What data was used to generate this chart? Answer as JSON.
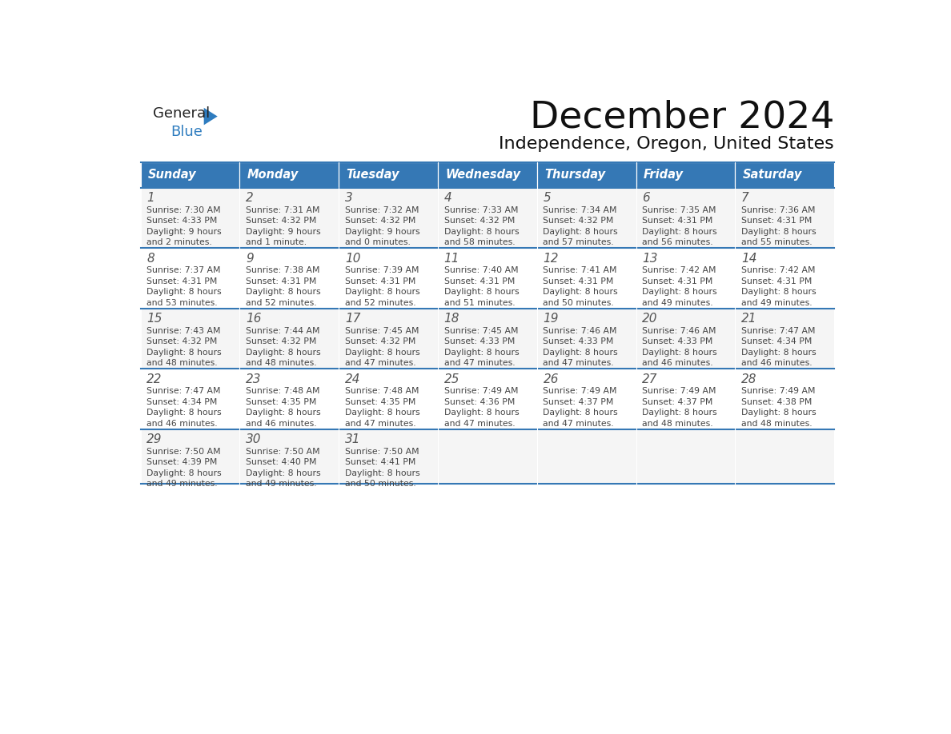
{
  "title": "December 2024",
  "subtitle": "Independence, Oregon, United States",
  "header_bg_color": "#3578b5",
  "header_text_color": "#ffffff",
  "row_bg_colors": [
    "#f5f5f5",
    "#ffffff",
    "#f5f5f5",
    "#ffffff",
    "#f5f5f5"
  ],
  "border_color": "#3578b5",
  "text_color": "#555555",
  "small_text_color": "#444444",
  "days_of_week": [
    "Sunday",
    "Monday",
    "Tuesday",
    "Wednesday",
    "Thursday",
    "Friday",
    "Saturday"
  ],
  "weeks": [
    [
      {
        "day": "1",
        "sunrise": "7:30 AM",
        "sunset": "4:33 PM",
        "daylight": "9 hours",
        "daylight2": "and 2 minutes."
      },
      {
        "day": "2",
        "sunrise": "7:31 AM",
        "sunset": "4:32 PM",
        "daylight": "9 hours",
        "daylight2": "and 1 minute."
      },
      {
        "day": "3",
        "sunrise": "7:32 AM",
        "sunset": "4:32 PM",
        "daylight": "9 hours",
        "daylight2": "and 0 minutes."
      },
      {
        "day": "4",
        "sunrise": "7:33 AM",
        "sunset": "4:32 PM",
        "daylight": "8 hours",
        "daylight2": "and 58 minutes."
      },
      {
        "day": "5",
        "sunrise": "7:34 AM",
        "sunset": "4:32 PM",
        "daylight": "8 hours",
        "daylight2": "and 57 minutes."
      },
      {
        "day": "6",
        "sunrise": "7:35 AM",
        "sunset": "4:31 PM",
        "daylight": "8 hours",
        "daylight2": "and 56 minutes."
      },
      {
        "day": "7",
        "sunrise": "7:36 AM",
        "sunset": "4:31 PM",
        "daylight": "8 hours",
        "daylight2": "and 55 minutes."
      }
    ],
    [
      {
        "day": "8",
        "sunrise": "7:37 AM",
        "sunset": "4:31 PM",
        "daylight": "8 hours",
        "daylight2": "and 53 minutes."
      },
      {
        "day": "9",
        "sunrise": "7:38 AM",
        "sunset": "4:31 PM",
        "daylight": "8 hours",
        "daylight2": "and 52 minutes."
      },
      {
        "day": "10",
        "sunrise": "7:39 AM",
        "sunset": "4:31 PM",
        "daylight": "8 hours",
        "daylight2": "and 52 minutes."
      },
      {
        "day": "11",
        "sunrise": "7:40 AM",
        "sunset": "4:31 PM",
        "daylight": "8 hours",
        "daylight2": "and 51 minutes."
      },
      {
        "day": "12",
        "sunrise": "7:41 AM",
        "sunset": "4:31 PM",
        "daylight": "8 hours",
        "daylight2": "and 50 minutes."
      },
      {
        "day": "13",
        "sunrise": "7:42 AM",
        "sunset": "4:31 PM",
        "daylight": "8 hours",
        "daylight2": "and 49 minutes."
      },
      {
        "day": "14",
        "sunrise": "7:42 AM",
        "sunset": "4:31 PM",
        "daylight": "8 hours",
        "daylight2": "and 49 minutes."
      }
    ],
    [
      {
        "day": "15",
        "sunrise": "7:43 AM",
        "sunset": "4:32 PM",
        "daylight": "8 hours",
        "daylight2": "and 48 minutes."
      },
      {
        "day": "16",
        "sunrise": "7:44 AM",
        "sunset": "4:32 PM",
        "daylight": "8 hours",
        "daylight2": "and 48 minutes."
      },
      {
        "day": "17",
        "sunrise": "7:45 AM",
        "sunset": "4:32 PM",
        "daylight": "8 hours",
        "daylight2": "and 47 minutes."
      },
      {
        "day": "18",
        "sunrise": "7:45 AM",
        "sunset": "4:33 PM",
        "daylight": "8 hours",
        "daylight2": "and 47 minutes."
      },
      {
        "day": "19",
        "sunrise": "7:46 AM",
        "sunset": "4:33 PM",
        "daylight": "8 hours",
        "daylight2": "and 47 minutes."
      },
      {
        "day": "20",
        "sunrise": "7:46 AM",
        "sunset": "4:33 PM",
        "daylight": "8 hours",
        "daylight2": "and 46 minutes."
      },
      {
        "day": "21",
        "sunrise": "7:47 AM",
        "sunset": "4:34 PM",
        "daylight": "8 hours",
        "daylight2": "and 46 minutes."
      }
    ],
    [
      {
        "day": "22",
        "sunrise": "7:47 AM",
        "sunset": "4:34 PM",
        "daylight": "8 hours",
        "daylight2": "and 46 minutes."
      },
      {
        "day": "23",
        "sunrise": "7:48 AM",
        "sunset": "4:35 PM",
        "daylight": "8 hours",
        "daylight2": "and 46 minutes."
      },
      {
        "day": "24",
        "sunrise": "7:48 AM",
        "sunset": "4:35 PM",
        "daylight": "8 hours",
        "daylight2": "and 47 minutes."
      },
      {
        "day": "25",
        "sunrise": "7:49 AM",
        "sunset": "4:36 PM",
        "daylight": "8 hours",
        "daylight2": "and 47 minutes."
      },
      {
        "day": "26",
        "sunrise": "7:49 AM",
        "sunset": "4:37 PM",
        "daylight": "8 hours",
        "daylight2": "and 47 minutes."
      },
      {
        "day": "27",
        "sunrise": "7:49 AM",
        "sunset": "4:37 PM",
        "daylight": "8 hours",
        "daylight2": "and 48 minutes."
      },
      {
        "day": "28",
        "sunrise": "7:49 AM",
        "sunset": "4:38 PM",
        "daylight": "8 hours",
        "daylight2": "and 48 minutes."
      }
    ],
    [
      {
        "day": "29",
        "sunrise": "7:50 AM",
        "sunset": "4:39 PM",
        "daylight": "8 hours",
        "daylight2": "and 49 minutes."
      },
      {
        "day": "30",
        "sunrise": "7:50 AM",
        "sunset": "4:40 PM",
        "daylight": "8 hours",
        "daylight2": "and 49 minutes."
      },
      {
        "day": "31",
        "sunrise": "7:50 AM",
        "sunset": "4:41 PM",
        "daylight": "8 hours",
        "daylight2": "and 50 minutes."
      },
      null,
      null,
      null,
      null
    ]
  ]
}
